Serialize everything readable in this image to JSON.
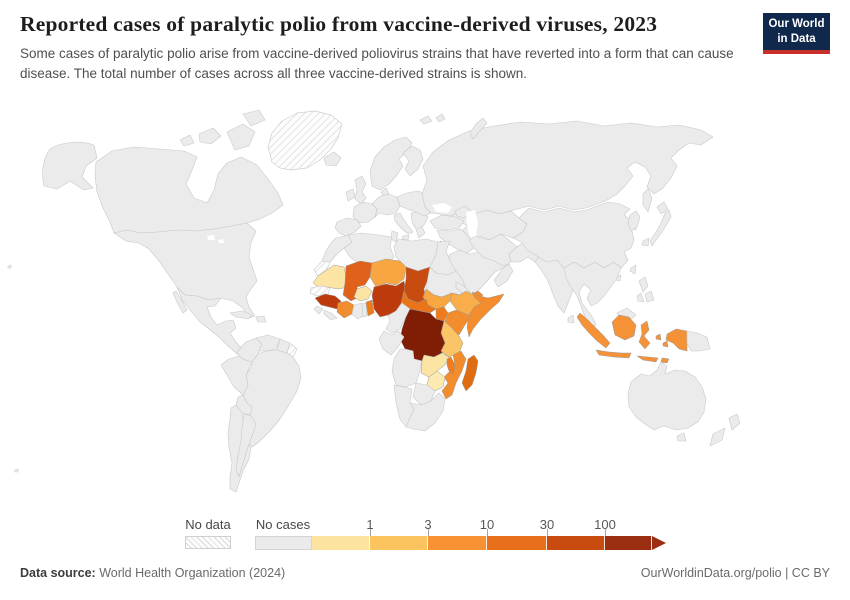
{
  "header": {
    "title": "Reported cases of paralytic polio from vaccine-derived viruses, 2023",
    "subtitle": "Some cases of paralytic polio arise from vaccine-derived poliovirus strains that have reverted into a form that can cause disease. The total number of cases across all three vaccine-derived strains is shown.",
    "logo": {
      "line1": "Our World",
      "line2": "in Data"
    }
  },
  "legend": {
    "no_data_label": "No data",
    "no_cases_label": "No cases",
    "ticks": [
      "1",
      "3",
      "10",
      "30",
      "100"
    ],
    "segment_colors": [
      "#ebebeb",
      "#fce3a0",
      "#fcc45e",
      "#f79134",
      "#e8701c",
      "#c84c0f",
      "#9b2d10"
    ]
  },
  "footer": {
    "source_label": "Data source:",
    "source_value": " World Health Organization (2024)",
    "credit": "OurWorldinData.org/polio | CC BY"
  },
  "map": {
    "land_color": "#ebebeb",
    "border_color": "#c9c9c9",
    "colored_border": "#9a9a9a",
    "hatched": [
      "greenland",
      "western_sahara",
      "senegal",
      "french_guiana"
    ],
    "fills": {
      "mauritania": "#fce5a4",
      "burkina": "#fce5a4",
      "zambia": "#fce5a4",
      "zimbabwe": "#fdeab0",
      "israel": "#fbd97e",
      "tanzania": "#fbc466",
      "ethiopia": "#f9ad4b",
      "niger": "#f8a642",
      "s_sudan": "#f8a642",
      "somalia": "#f28c2c",
      "kenya": "#f28c2c",
      "mozambique": "#f28c2c",
      "yemen": "#f28c2c",
      "cote_divoire": "#f18d2e",
      "sumatra": "#f59238",
      "java": "#f59238",
      "kalimantan": "#f59238",
      "sulawesi": "#f59238",
      "lesser_sunda": "#f59238",
      "sunda2": "#f59238",
      "maluku1": "#f59238",
      "maluku2": "#f59238",
      "wpapua": "#f59238",
      "benin": "#ee7c1d",
      "uganda": "#ee7c1d",
      "malawi": "#ef7d1f",
      "car": "#eb7318",
      "mali": "#e0611a",
      "madagascar": "#e06c12",
      "chad": "#c84c0f",
      "nigeria": "#bd3a0c",
      "guinea": "#bd3a0c",
      "drc": "#7f1d05"
    }
  },
  "chart_data": {
    "type": "choropleth_map",
    "title": "Reported cases of paralytic polio from vaccine-derived viruses, 2023",
    "year": "2023",
    "unit": "reported cases of vaccine-derived paralytic polio",
    "legend_buckets": [
      "No data",
      "No cases",
      "<1",
      "1-3",
      "3-10",
      "10-30",
      "30-100",
      "100+"
    ],
    "scale_ticks": [
      1,
      3,
      10,
      30,
      100
    ],
    "countries": [
      {
        "name": "Democratic Republic of Congo",
        "value_bucket": "100+"
      },
      {
        "name": "Nigeria",
        "value_bucket": "30-100"
      },
      {
        "name": "Guinea",
        "value_bucket": "30-100"
      },
      {
        "name": "Chad",
        "value_bucket": "30-100"
      },
      {
        "name": "Mali",
        "value_bucket": "10-30"
      },
      {
        "name": "Central African Republic",
        "value_bucket": "10-30"
      },
      {
        "name": "Madagascar",
        "value_bucket": "10-30"
      },
      {
        "name": "Benin",
        "value_bucket": "10-30"
      },
      {
        "name": "Uganda",
        "value_bucket": "10-30"
      },
      {
        "name": "Malawi",
        "value_bucket": "10-30"
      },
      {
        "name": "Somalia",
        "value_bucket": "3-10"
      },
      {
        "name": "Kenya",
        "value_bucket": "3-10"
      },
      {
        "name": "Mozambique",
        "value_bucket": "3-10"
      },
      {
        "name": "Yemen",
        "value_bucket": "3-10"
      },
      {
        "name": "Côte d'Ivoire",
        "value_bucket": "3-10"
      },
      {
        "name": "Indonesia",
        "value_bucket": "3-10"
      },
      {
        "name": "Niger",
        "value_bucket": "3-10"
      },
      {
        "name": "South Sudan",
        "value_bucket": "3-10"
      },
      {
        "name": "Ethiopia",
        "value_bucket": "3-10"
      },
      {
        "name": "Tanzania",
        "value_bucket": "1-3"
      },
      {
        "name": "Israel",
        "value_bucket": "1-3"
      },
      {
        "name": "Mauritania",
        "value_bucket": "1"
      },
      {
        "name": "Burkina Faso",
        "value_bucket": "1"
      },
      {
        "name": "Zambia",
        "value_bucket": "1"
      },
      {
        "name": "Zimbabwe",
        "value_bucket": "1"
      }
    ],
    "no_data": [
      "Greenland",
      "Western Sahara",
      "Senegal",
      "French Guiana"
    ],
    "all_other_countries": "No cases"
  }
}
